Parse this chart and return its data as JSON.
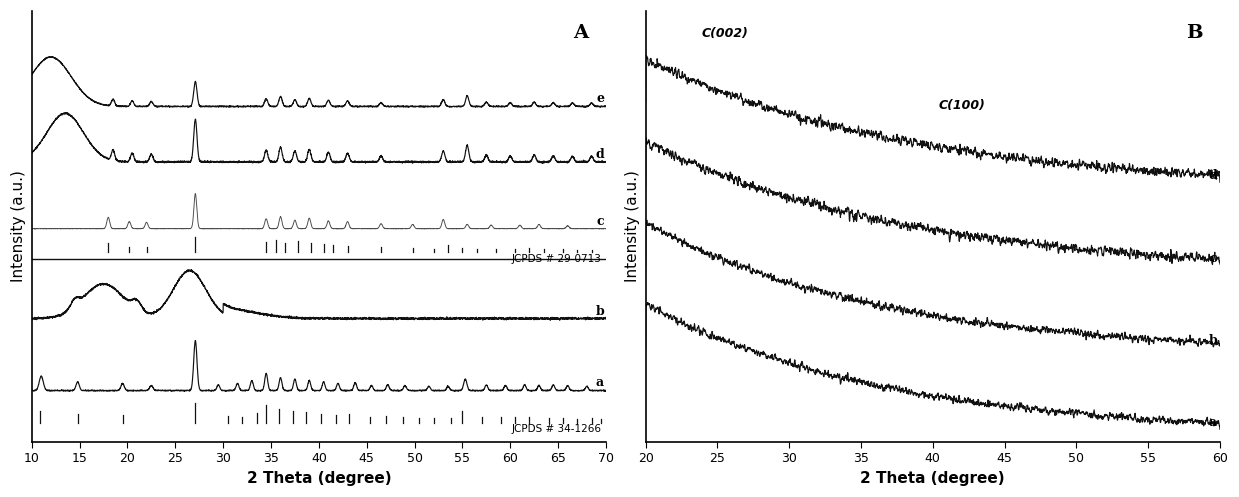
{
  "panel_A": {
    "title": "A",
    "xlabel": "2 Theta (degree)",
    "ylabel": "Intensity (a.u.)",
    "xlim": [
      10,
      70
    ],
    "jcpds_34_1266_label": "JCPDS # 34-1266",
    "jcpds_29_0713_label": "JCPDS # 29-0713",
    "xticks": [
      10,
      15,
      20,
      25,
      30,
      35,
      40,
      45,
      50,
      55,
      60,
      65,
      70
    ]
  },
  "panel_B": {
    "title": "B",
    "xlabel": "2 Theta (degree)",
    "ylabel": "Intensity (a.u.)",
    "xlim": [
      20,
      60
    ],
    "annotation_002": "C(002)",
    "annotation_100": "C(100)",
    "xticks": [
      20,
      25,
      30,
      35,
      40,
      45,
      50,
      55,
      60
    ]
  },
  "seed": 42,
  "line_color": "#111111",
  "background_color": "#ffffff"
}
